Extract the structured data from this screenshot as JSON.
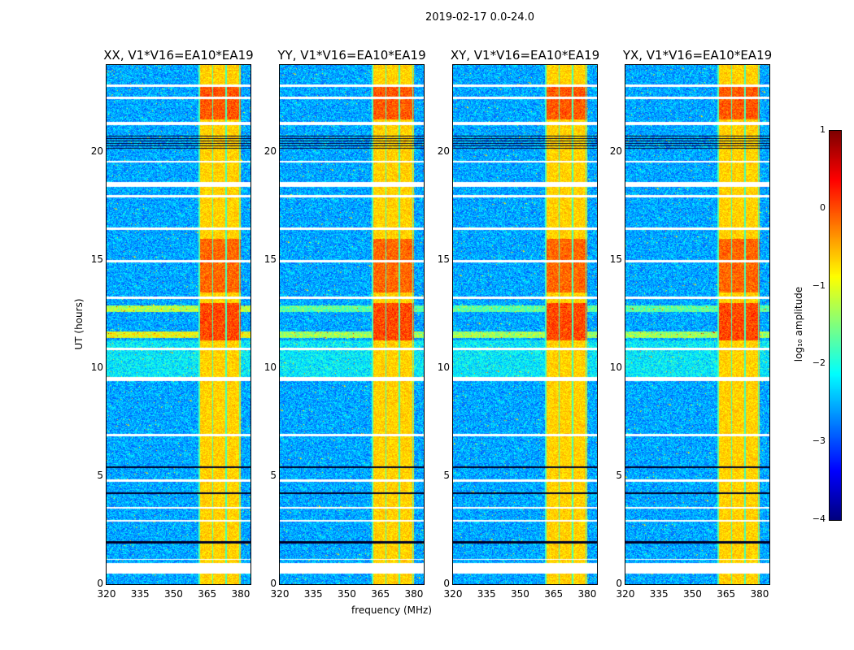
{
  "suptitle": "2019-02-17 0.0-24.0",
  "chart_data": {
    "type": "heatmap",
    "title": "2019-02-17 0.0-24.0",
    "xlabel": "frequency (MHz)",
    "ylabel": "UT (hours)",
    "xlim": [
      320,
      384.4
    ],
    "ylim": [
      0,
      24
    ],
    "xticks": [
      "320",
      "335",
      "350",
      "365",
      "380"
    ],
    "yticks": [
      "0",
      "5",
      "10",
      "15",
      "20"
    ],
    "panels": [
      {
        "title": "XX, V1*V16=EA10*EA19"
      },
      {
        "title": "YY, V1*V16=EA10*EA19"
      },
      {
        "title": "XY, V1*V16=EA10*EA19"
      },
      {
        "title": "YX, V1*V16=EA10*EA19"
      }
    ],
    "bright_band_mhz": [
      361,
      380
    ],
    "flagged_hours": [
      [
        0.5,
        1.0
      ],
      [
        1.15,
        1.2
      ],
      [
        2.9,
        3.0
      ],
      [
        3.5,
        3.6
      ],
      [
        4.75,
        4.85
      ],
      [
        6.85,
        6.95
      ],
      [
        9.4,
        9.6
      ],
      [
        10.85,
        10.95
      ],
      [
        13.2,
        13.3
      ],
      [
        14.9,
        15.0
      ],
      [
        16.4,
        16.5
      ],
      [
        17.9,
        18.0
      ],
      [
        18.4,
        18.6
      ],
      [
        19.5,
        19.6
      ],
      [
        21.25,
        21.4
      ],
      [
        22.45,
        22.55
      ],
      [
        23.0,
        23.1
      ]
    ],
    "colorbar": {
      "label": "log₁₀ amplitude",
      "range": [
        -4,
        1
      ],
      "ticks": [
        "1",
        "0",
        "−1",
        "−2",
        "−3",
        "−4"
      ],
      "colormap": "jet"
    }
  }
}
